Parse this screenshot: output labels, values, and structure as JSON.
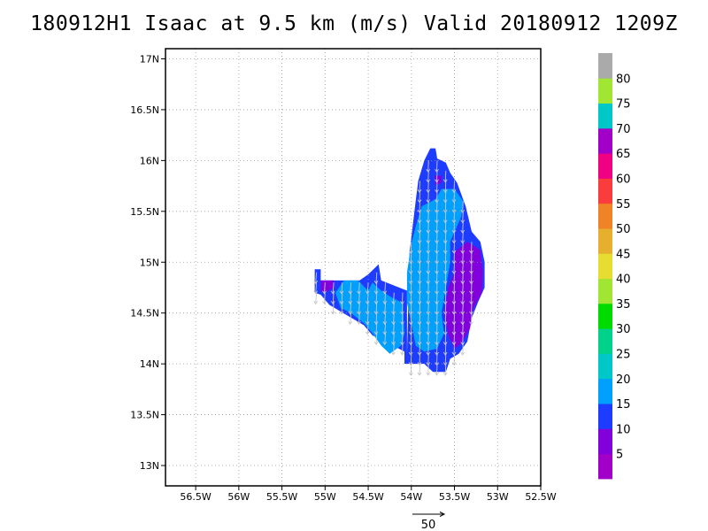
{
  "title": "180912H1 Isaac at 9.5 km (m/s) Valid 20180912  1209Z",
  "chart_data": {
    "type": "heatmap",
    "title": "180912H1 Isaac at 9.5 km (m/s) Valid 20180912  1209Z",
    "xlim": [
      -56.85,
      -52.5
    ],
    "ylim": [
      12.8,
      17.1
    ],
    "x_ticks": [
      {
        "value": -56.5,
        "label": "56.5W"
      },
      {
        "value": -56,
        "label": "56W"
      },
      {
        "value": -55.5,
        "label": "55.5W"
      },
      {
        "value": -55,
        "label": "55W"
      },
      {
        "value": -54.5,
        "label": "54.5W"
      },
      {
        "value": -54,
        "label": "54W"
      },
      {
        "value": -53.5,
        "label": "53.5W"
      },
      {
        "value": -53,
        "label": "53W"
      },
      {
        "value": -52.5,
        "label": "52.5W"
      }
    ],
    "y_ticks": [
      {
        "value": 13,
        "label": "13N"
      },
      {
        "value": 13.5,
        "label": "13.5N"
      },
      {
        "value": 14,
        "label": "14N"
      },
      {
        "value": 14.5,
        "label": "14.5N"
      },
      {
        "value": 15,
        "label": "15N"
      },
      {
        "value": 15.5,
        "label": "15.5N"
      },
      {
        "value": 16,
        "label": "16N"
      },
      {
        "value": 16.5,
        "label": "16.5N"
      },
      {
        "value": 17,
        "label": "17N"
      }
    ],
    "grid": true,
    "colorbar": {
      "labels": [
        "5",
        "10",
        "15",
        "20",
        "25",
        "30",
        "35",
        "40",
        "45",
        "50",
        "55",
        "60",
        "65",
        "70",
        "75",
        "80"
      ],
      "colors": [
        "#a000c8",
        "#8200dc",
        "#1e3cff",
        "#00a0ff",
        "#00c8c8",
        "#00d28c",
        "#00dc00",
        "#a0e632",
        "#e6dc32",
        "#e6af2d",
        "#f08228",
        "#fa3c3c",
        "#f00082",
        "#a000c8",
        "#00c8c8",
        "#a0e632",
        "#aaaaaa"
      ]
    },
    "regions": [
      {
        "color": "#1e3cff",
        "points": [
          [
            -55.12,
            14.93
          ],
          [
            -55.05,
            14.93
          ],
          [
            -55.05,
            14.82
          ],
          [
            -54.6,
            14.82
          ],
          [
            -54.5,
            14.88
          ],
          [
            -54.38,
            14.98
          ],
          [
            -54.35,
            14.82
          ],
          [
            -54.05,
            14.72
          ],
          [
            -54.05,
            14.1
          ],
          [
            -54.02,
            15.1
          ],
          [
            -53.95,
            15.6
          ],
          [
            -53.92,
            15.8
          ],
          [
            -53.85,
            16.0
          ],
          [
            -53.78,
            16.12
          ],
          [
            -53.72,
            16.12
          ],
          [
            -53.7,
            16.02
          ],
          [
            -53.6,
            15.98
          ],
          [
            -53.55,
            15.88
          ],
          [
            -53.47,
            15.78
          ],
          [
            -53.37,
            15.55
          ],
          [
            -53.3,
            15.3
          ],
          [
            -53.2,
            15.2
          ],
          [
            -53.15,
            15.0
          ],
          [
            -53.15,
            14.75
          ],
          [
            -53.22,
            14.62
          ],
          [
            -53.3,
            14.45
          ],
          [
            -53.35,
            14.22
          ],
          [
            -53.45,
            14.1
          ],
          [
            -53.55,
            14.05
          ],
          [
            -53.6,
            13.92
          ],
          [
            -53.75,
            13.92
          ],
          [
            -53.85,
            14.0
          ],
          [
            -54.08,
            14.0
          ],
          [
            -54.08,
            14.12
          ],
          [
            -54.25,
            14.2
          ],
          [
            -54.45,
            14.28
          ],
          [
            -54.55,
            14.38
          ],
          [
            -54.75,
            14.48
          ],
          [
            -54.95,
            14.58
          ],
          [
            -55.05,
            14.68
          ],
          [
            -55.12,
            14.7
          ]
        ]
      },
      {
        "color": "#00a0ff",
        "points": [
          [
            -54.0,
            15.18
          ],
          [
            -53.95,
            15.35
          ],
          [
            -53.88,
            15.55
          ],
          [
            -53.72,
            15.62
          ],
          [
            -53.65,
            15.72
          ],
          [
            -53.5,
            15.72
          ],
          [
            -53.4,
            15.6
          ],
          [
            -53.42,
            15.45
          ],
          [
            -53.55,
            15.2
          ],
          [
            -53.55,
            15.0
          ],
          [
            -53.6,
            14.75
          ],
          [
            -53.65,
            14.5
          ],
          [
            -53.62,
            14.3
          ],
          [
            -53.7,
            14.15
          ],
          [
            -53.85,
            14.12
          ],
          [
            -53.95,
            14.18
          ],
          [
            -54.0,
            14.4
          ],
          [
            -54.05,
            14.6
          ],
          [
            -54.05,
            14.9
          ]
        ]
      },
      {
        "color": "#00a0ff",
        "points": [
          [
            -54.88,
            14.7
          ],
          [
            -54.78,
            14.82
          ],
          [
            -54.62,
            14.82
          ],
          [
            -54.5,
            14.72
          ],
          [
            -54.45,
            14.8
          ],
          [
            -54.35,
            14.72
          ],
          [
            -54.22,
            14.65
          ],
          [
            -54.1,
            14.6
          ],
          [
            -54.08,
            14.3
          ],
          [
            -54.12,
            14.18
          ],
          [
            -54.25,
            14.1
          ],
          [
            -54.35,
            14.18
          ],
          [
            -54.45,
            14.3
          ],
          [
            -54.55,
            14.4
          ],
          [
            -54.7,
            14.5
          ],
          [
            -54.82,
            14.55
          ]
        ]
      },
      {
        "color": "#8200dc",
        "points": [
          [
            -53.5,
            15.1
          ],
          [
            -53.35,
            15.2
          ],
          [
            -53.2,
            15.12
          ],
          [
            -53.17,
            14.9
          ],
          [
            -53.18,
            14.7
          ],
          [
            -53.28,
            14.55
          ],
          [
            -53.32,
            14.35
          ],
          [
            -53.42,
            14.2
          ],
          [
            -53.5,
            14.15
          ],
          [
            -53.57,
            14.28
          ],
          [
            -53.62,
            14.5
          ],
          [
            -53.57,
            14.75
          ],
          [
            -53.5,
            14.9
          ]
        ]
      },
      {
        "color": "#8200dc",
        "points": [
          [
            -55.05,
            14.82
          ],
          [
            -54.9,
            14.82
          ],
          [
            -54.9,
            14.75
          ],
          [
            -55.0,
            14.7
          ],
          [
            -55.05,
            14.72
          ]
        ]
      },
      {
        "color": "#8200dc",
        "points": [
          [
            -53.73,
            15.85
          ],
          [
            -53.65,
            15.85
          ],
          [
            -53.65,
            15.78
          ],
          [
            -53.72,
            15.76
          ]
        ]
      }
    ],
    "barb_area": {
      "lon_range": [
        -55.1,
        -53.2
      ],
      "lat_range": [
        14.0,
        16.1
      ],
      "spacing_deg": 0.05
    },
    "reference_vector": {
      "label": "50"
    }
  }
}
